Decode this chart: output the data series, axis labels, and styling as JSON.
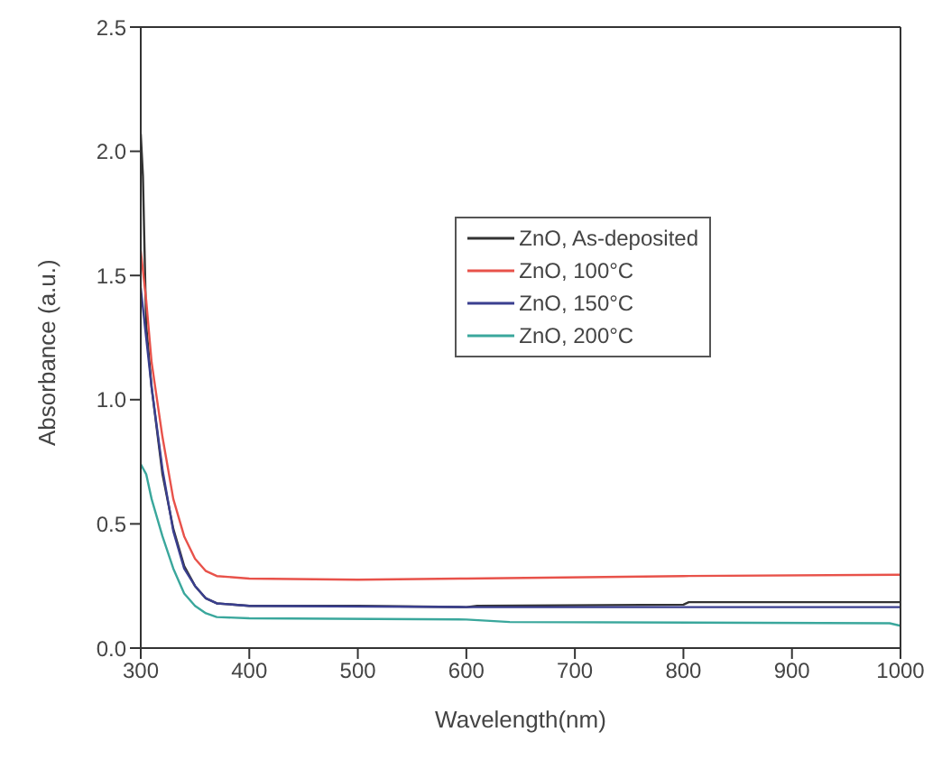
{
  "chart_data": {
    "type": "line",
    "xlabel": "Wavelength(nm)",
    "ylabel": "Absorbance (a.u.)",
    "xlim": [
      300,
      1000
    ],
    "xticks": [
      300,
      400,
      500,
      600,
      700,
      800,
      900,
      1000
    ],
    "ylim": [
      0,
      2.5
    ],
    "yticks": [
      {
        "value": 0,
        "label": "0.0"
      },
      {
        "value": 0.5,
        "label": "0.5"
      },
      {
        "value": 1,
        "label": "1.0"
      },
      {
        "value": 1.5,
        "label": "1.5"
      },
      {
        "value": 2,
        "label": "2.0"
      },
      {
        "value": 2.5,
        "label": "2.5"
      }
    ],
    "legend": "right",
    "marker": "none",
    "line_style": "solid",
    "series": [
      {
        "name": "ZnO, As-deposited",
        "color": "#333333",
        "x": [
          300,
          302,
          305,
          310,
          320,
          330,
          340,
          350,
          360,
          370,
          400,
          500,
          600,
          610,
          800,
          805,
          1000
        ],
        "values": [
          2.07,
          1.9,
          1.3,
          1.05,
          0.7,
          0.48,
          0.33,
          0.25,
          0.2,
          0.18,
          0.17,
          0.17,
          0.165,
          0.17,
          0.175,
          0.185,
          0.185
        ]
      },
      {
        "name": "ZnO, 100°C",
        "color": "#e8524a",
        "x": [
          300,
          305,
          310,
          320,
          330,
          340,
          350,
          360,
          370,
          400,
          500,
          600,
          800,
          1000
        ],
        "values": [
          1.6,
          1.4,
          1.15,
          0.85,
          0.6,
          0.45,
          0.36,
          0.31,
          0.29,
          0.28,
          0.275,
          0.28,
          0.29,
          0.295
        ]
      },
      {
        "name": "ZnO, 150°C",
        "color": "#3a3f8f",
        "x": [
          300,
          305,
          310,
          320,
          330,
          340,
          350,
          360,
          370,
          400,
          600,
          1000
        ],
        "values": [
          1.45,
          1.25,
          1.05,
          0.72,
          0.47,
          0.32,
          0.25,
          0.2,
          0.18,
          0.17,
          0.165,
          0.165
        ]
      },
      {
        "name": "ZnO, 200°C",
        "color": "#3aa79c",
        "x": [
          300,
          305,
          310,
          320,
          330,
          340,
          350,
          360,
          370,
          400,
          600,
          640,
          990,
          1000
        ],
        "values": [
          0.74,
          0.7,
          0.6,
          0.45,
          0.32,
          0.22,
          0.17,
          0.14,
          0.125,
          0.12,
          0.115,
          0.105,
          0.1,
          0.09
        ]
      }
    ]
  }
}
